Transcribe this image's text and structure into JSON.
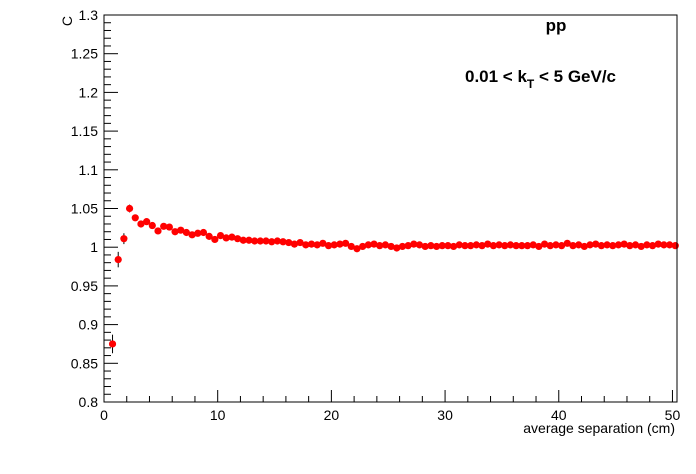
{
  "chart_data": {
    "type": "scatter",
    "title": "",
    "xlabel": "average separation (cm)",
    "ylabel": "C",
    "xlim": [
      0,
      50.4
    ],
    "ylim": [
      0.8,
      1.3
    ],
    "x_ticks": [
      0,
      10,
      20,
      30,
      40,
      50
    ],
    "y_ticks": [
      0.8,
      0.85,
      0.9,
      0.95,
      1,
      1.05,
      1.1,
      1.15,
      1.2,
      1.25,
      1.3
    ],
    "grid": false,
    "legend": "none",
    "annotations": [
      {
        "id": "system",
        "text": "pp"
      },
      {
        "id": "kt",
        "prefix": "0.01 < k",
        "subscript": "T",
        "suffix": " < 5 GeV/c"
      }
    ],
    "marker_color": "#ff0000",
    "series": [
      {
        "x": [
          0.75,
          1.25,
          1.75,
          2.25,
          2.75,
          3.25,
          3.75,
          4.25,
          4.75,
          5.25,
          5.75,
          6.25,
          6.75,
          7.25,
          7.75,
          8.25,
          8.75,
          9.25,
          9.75,
          10.25,
          10.75,
          11.25,
          11.75,
          12.25,
          12.75,
          13.25,
          13.75,
          14.25,
          14.75,
          15.25,
          15.75,
          16.25,
          16.75,
          17.25,
          17.75,
          18.25,
          18.75,
          19.25,
          19.75,
          20.25,
          20.75,
          21.25,
          21.75,
          22.25,
          22.75,
          23.25,
          23.75,
          24.25,
          24.75,
          25.25,
          25.75,
          26.25,
          26.75,
          27.25,
          27.75,
          28.25,
          28.75,
          29.25,
          29.75,
          30.25,
          30.75,
          31.25,
          31.75,
          32.25,
          32.75,
          33.25,
          33.75,
          34.25,
          34.75,
          35.25,
          35.75,
          36.25,
          36.75,
          37.25,
          37.75,
          38.25,
          38.75,
          39.25,
          39.75,
          40.25,
          40.75,
          41.25,
          41.75,
          42.25,
          42.75,
          43.25,
          43.75,
          44.25,
          44.75,
          45.25,
          45.75,
          46.25,
          46.75,
          47.25,
          47.75,
          48.25,
          48.75,
          49.25,
          49.75,
          50.25
        ],
        "y": [
          0.875,
          0.984,
          1.011,
          1.05,
          1.038,
          1.03,
          1.033,
          1.028,
          1.021,
          1.027,
          1.026,
          1.02,
          1.022,
          1.019,
          1.016,
          1.018,
          1.019,
          1.014,
          1.01,
          1.015,
          1.012,
          1.013,
          1.011,
          1.009,
          1.009,
          1.008,
          1.008,
          1.008,
          1.007,
          1.008,
          1.007,
          1.006,
          1.004,
          1.006,
          1.003,
          1.004,
          1.003,
          1.005,
          1.002,
          1.003,
          1.004,
          1.005,
          1.001,
          0.998,
          1.001,
          1.003,
          1.004,
          1.002,
          1.003,
          1.001,
          0.999,
          1.001,
          1.002,
          1.004,
          1.003,
          1.001,
          1.002,
          1.001,
          1.002,
          1.002,
          1.001,
          1.003,
          1.002,
          1.002,
          1.003,
          1.002,
          1.004,
          1.002,
          1.003,
          1.002,
          1.003,
          1.002,
          1.002,
          1.002,
          1.003,
          1.001,
          1.004,
          1.002,
          1.003,
          1.002,
          1.005,
          1.002,
          1.003,
          1.001,
          1.003,
          1.004,
          1.002,
          1.003,
          1.002,
          1.003,
          1.004,
          1.002,
          1.003,
          1.001,
          1.003,
          1.002,
          1.004,
          1.003,
          1.003,
          1.002
        ],
        "yerr": [
          0.012,
          0.01,
          0.007,
          0.005,
          0.004,
          0.004,
          0.003,
          0.003,
          0.003,
          0.003,
          0.003,
          0.003,
          0.002,
          0.002,
          0.002,
          0.002,
          0.002,
          0.002,
          0.002,
          0.002,
          0.002,
          0.002,
          0.002,
          0.002,
          0.002,
          0.002,
          0.002,
          0.002,
          0.002,
          0.002,
          0.002,
          0.002,
          0.002,
          0.002,
          0.002,
          0.002,
          0.002,
          0.002,
          0.002,
          0.002,
          0.002,
          0.002,
          0.002,
          0.002,
          0.002,
          0.002,
          0.002,
          0.002,
          0.002,
          0.002,
          0.002,
          0.002,
          0.002,
          0.002,
          0.002,
          0.002,
          0.002,
          0.002,
          0.002,
          0.002,
          0.002,
          0.002,
          0.002,
          0.002,
          0.002,
          0.002,
          0.002,
          0.002,
          0.002,
          0.002,
          0.002,
          0.002,
          0.002,
          0.002,
          0.002,
          0.002,
          0.002,
          0.002,
          0.002,
          0.002,
          0.002,
          0.002,
          0.002,
          0.002,
          0.002,
          0.002,
          0.002,
          0.002,
          0.002,
          0.002,
          0.002,
          0.002,
          0.002,
          0.002,
          0.002,
          0.002,
          0.002,
          0.002,
          0.002,
          0.002
        ]
      }
    ]
  }
}
